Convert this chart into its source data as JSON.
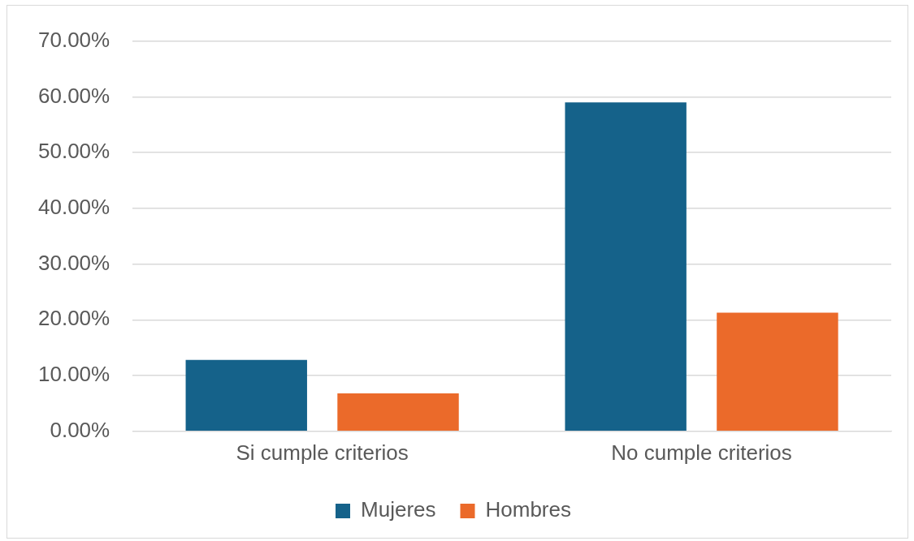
{
  "chart_data": {
    "type": "bar",
    "categories": [
      "Si cumple criterios",
      "No cumple criterios"
    ],
    "series": [
      {
        "name": "Mujeres",
        "color": "#15628a",
        "values": [
          12.8,
          59
        ]
      },
      {
        "name": "Hombres",
        "color": "#eb6a2a",
        "values": [
          6.8,
          21.3
        ]
      }
    ],
    "ylim": [
      0,
      70
    ],
    "yticks": [
      {
        "value": 0,
        "label": "0.00%"
      },
      {
        "value": 10,
        "label": "10.00%"
      },
      {
        "value": 20,
        "label": "20.00%"
      },
      {
        "value": 30,
        "label": "30.00%"
      },
      {
        "value": 40,
        "label": "40.00%"
      },
      {
        "value": 50,
        "label": "50.00%"
      },
      {
        "value": 60,
        "label": "60.00%"
      },
      {
        "value": 70,
        "label": "70.00%"
      }
    ],
    "grid": "y",
    "legend": "bottom"
  }
}
